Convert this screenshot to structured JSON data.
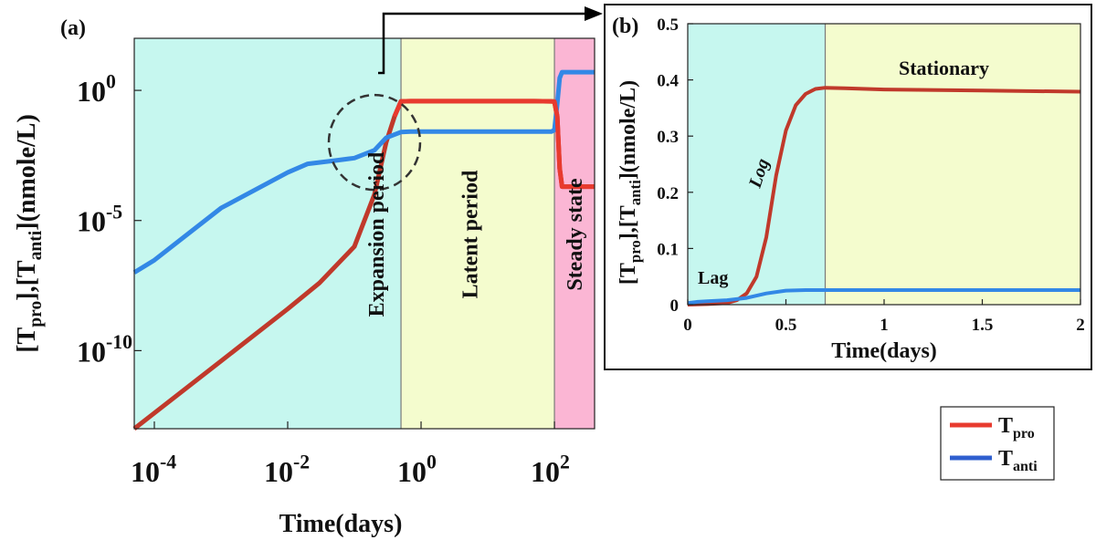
{
  "colors": {
    "tpro": "#e83a2e",
    "tpro_dark": "#c0392b",
    "tanti": "#3388e6",
    "tanti_dark": "#2f5fcf",
    "expansion_bg": "#c6f7ef",
    "latent_bg": "#f4fcce",
    "steady_bg": "#fbb6d4",
    "zoom_circle": "#333333",
    "arrow": "#000000"
  },
  "panel_a": {
    "label": "(a)",
    "ylabel_parts": [
      "[T",
      "pro",
      "],[T",
      "anti",
      "](nmole/L)"
    ],
    "xlabel": "Time(days)",
    "x_ticks": [
      {
        "base": "10",
        "exp": "-4"
      },
      {
        "base": "10",
        "exp": "-2"
      },
      {
        "base": "10",
        "exp": "0"
      },
      {
        "base": "10",
        "exp": "2"
      }
    ],
    "y_ticks": [
      {
        "base": "10",
        "exp": "0"
      },
      {
        "base": "10",
        "exp": "-5"
      },
      {
        "base": "10",
        "exp": "-10"
      }
    ],
    "regions": [
      {
        "name": "Expansion period",
        "color_key": "expansion_bg"
      },
      {
        "name": "Latent period",
        "color_key": "latent_bg"
      },
      {
        "name": "Steady state",
        "color_key": "steady_bg"
      }
    ]
  },
  "panel_b": {
    "label": "(b)",
    "ylabel_parts": [
      "[T",
      "pro",
      "],[T",
      "anti",
      "](nmole/L)"
    ],
    "xlabel": "Time(days)",
    "x_ticks": [
      "0",
      "0.5",
      "1",
      "1.5",
      "2"
    ],
    "y_ticks": [
      "0",
      "0.1",
      "0.2",
      "0.3",
      "0.4",
      "0.5"
    ],
    "phase_labels": {
      "lag": "Lag",
      "log": "Log",
      "stationary": "Stationary"
    }
  },
  "legend": [
    {
      "base": "T",
      "sub": "pro",
      "color_key": "tpro"
    },
    {
      "base": "T",
      "sub": "anti",
      "color_key": "tanti_dark"
    }
  ],
  "chart_data": [
    {
      "type": "line",
      "title": "(a)",
      "xlabel": "Time(days)",
      "ylabel": "[Tpro],[Tanti](nmole/L)",
      "xscale": "log",
      "yscale": "log",
      "xlim": [
        5e-05,
        400
      ],
      "ylim": [
        1e-13,
        100
      ],
      "grid": false,
      "shaded_regions": [
        {
          "label": "Expansion period",
          "x_range": [
            5e-05,
            0.5
          ]
        },
        {
          "label": "Latent period",
          "x_range": [
            0.5,
            100
          ]
        },
        {
          "label": "Steady state",
          "x_range": [
            100,
            400
          ]
        }
      ],
      "series": [
        {
          "name": "Tpro",
          "x": [
            5e-05,
            0.0001,
            0.001,
            0.01,
            0.03,
            0.1,
            0.2,
            0.3,
            0.4,
            0.5,
            0.7,
            1,
            10,
            50,
            90,
            100,
            110,
            120,
            130,
            200,
            400
          ],
          "y": [
            1e-13,
            4e-13,
            4e-11,
            4e-09,
            4e-08,
            1e-06,
            0.0001,
            0.01,
            0.1,
            0.38,
            0.385,
            0.385,
            0.385,
            0.385,
            0.38,
            0.37,
            0.1,
            0.001,
            0.0002,
            0.0002,
            0.0002
          ]
        },
        {
          "name": "Tanti",
          "x": [
            5e-05,
            0.0001,
            0.001,
            0.01,
            0.02,
            0.05,
            0.1,
            0.2,
            0.3,
            0.5,
            0.7,
            1,
            10,
            90,
            100,
            110,
            120,
            130,
            200,
            400
          ],
          "y": [
            1e-07,
            3e-07,
            3e-05,
            0.0007,
            0.0015,
            0.002,
            0.0025,
            0.005,
            0.015,
            0.025,
            0.026,
            0.026,
            0.026,
            0.026,
            0.03,
            0.3,
            3,
            5,
            5,
            5
          ]
        }
      ]
    },
    {
      "type": "line",
      "title": "(b)",
      "xlabel": "Time(days)",
      "ylabel": "[Tpro],[Tanti](nmole/L)",
      "xlim": [
        0,
        2
      ],
      "ylim": [
        0,
        0.5
      ],
      "grid": false,
      "shaded_regions": [
        {
          "x_range": [
            0,
            0.7
          ],
          "color": "cyan"
        },
        {
          "x_range": [
            0.7,
            2
          ],
          "color": "yellow"
        }
      ],
      "annotations": [
        "Lag",
        "Log",
        "Stationary"
      ],
      "series": [
        {
          "name": "Tpro",
          "x": [
            0,
            0.1,
            0.2,
            0.25,
            0.3,
            0.35,
            0.4,
            0.45,
            0.5,
            0.55,
            0.6,
            0.65,
            0.7,
            0.8,
            1.0,
            1.5,
            2.0
          ],
          "y": [
            0,
            0.001,
            0.003,
            0.008,
            0.02,
            0.05,
            0.12,
            0.23,
            0.31,
            0.355,
            0.375,
            0.384,
            0.386,
            0.385,
            0.383,
            0.381,
            0.379
          ]
        },
        {
          "name": "Tanti",
          "x": [
            0,
            0.05,
            0.1,
            0.2,
            0.3,
            0.4,
            0.5,
            0.6,
            0.7,
            1.0,
            2.0
          ],
          "y": [
            0.003,
            0.005,
            0.006,
            0.008,
            0.012,
            0.02,
            0.025,
            0.026,
            0.026,
            0.026,
            0.026
          ]
        }
      ]
    }
  ]
}
